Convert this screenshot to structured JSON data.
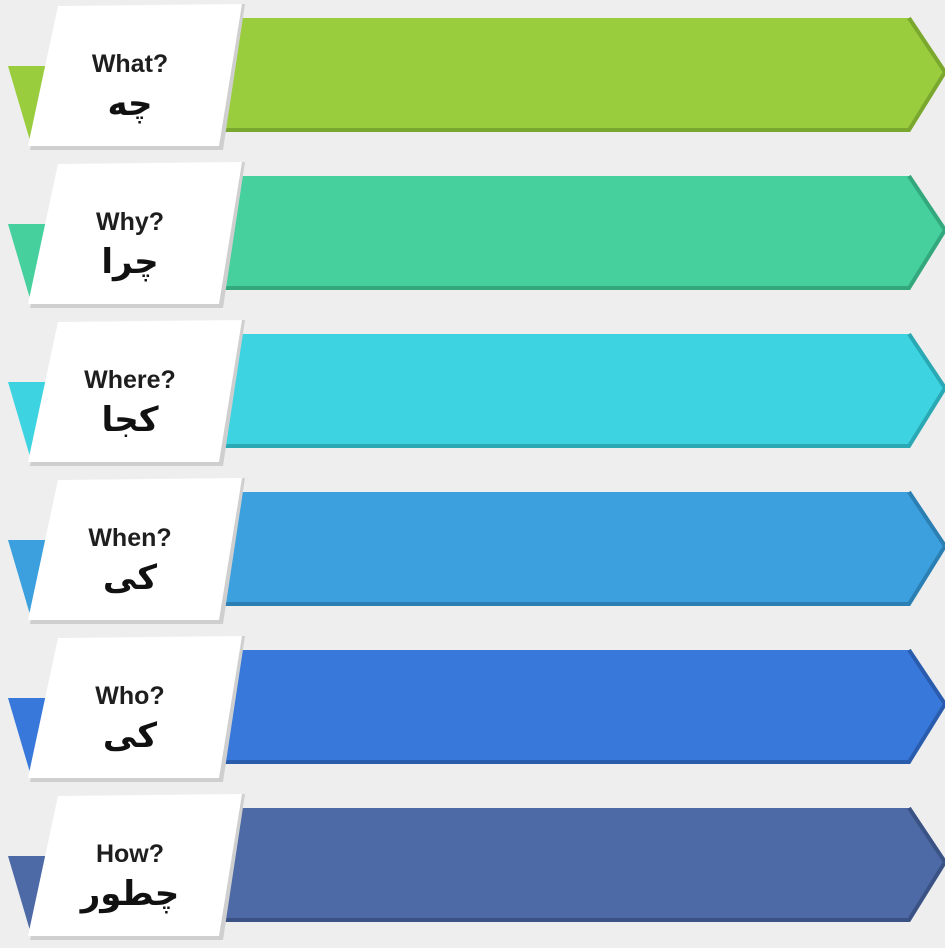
{
  "rows": [
    {
      "en": "What?",
      "fa": "چه",
      "color": "#9acd3e",
      "dark": "#7aa82e"
    },
    {
      "en": "Why?",
      "fa": "چرا",
      "color": "#45d09d",
      "dark": "#33a87c"
    },
    {
      "en": "Where?",
      "fa": "کجا",
      "color": "#3dd3e0",
      "dark": "#2aa9b5"
    },
    {
      "en": "When?",
      "fa": "کی",
      "color": "#3ca0de",
      "dark": "#2b7fb3"
    },
    {
      "en": "Who?",
      "fa": "کی",
      "color": "#3878da",
      "dark": "#2a5cae"
    },
    {
      "en": "How?",
      "fa": "چطور",
      "color": "#4e6aa6",
      "dark": "#3b5285"
    }
  ]
}
